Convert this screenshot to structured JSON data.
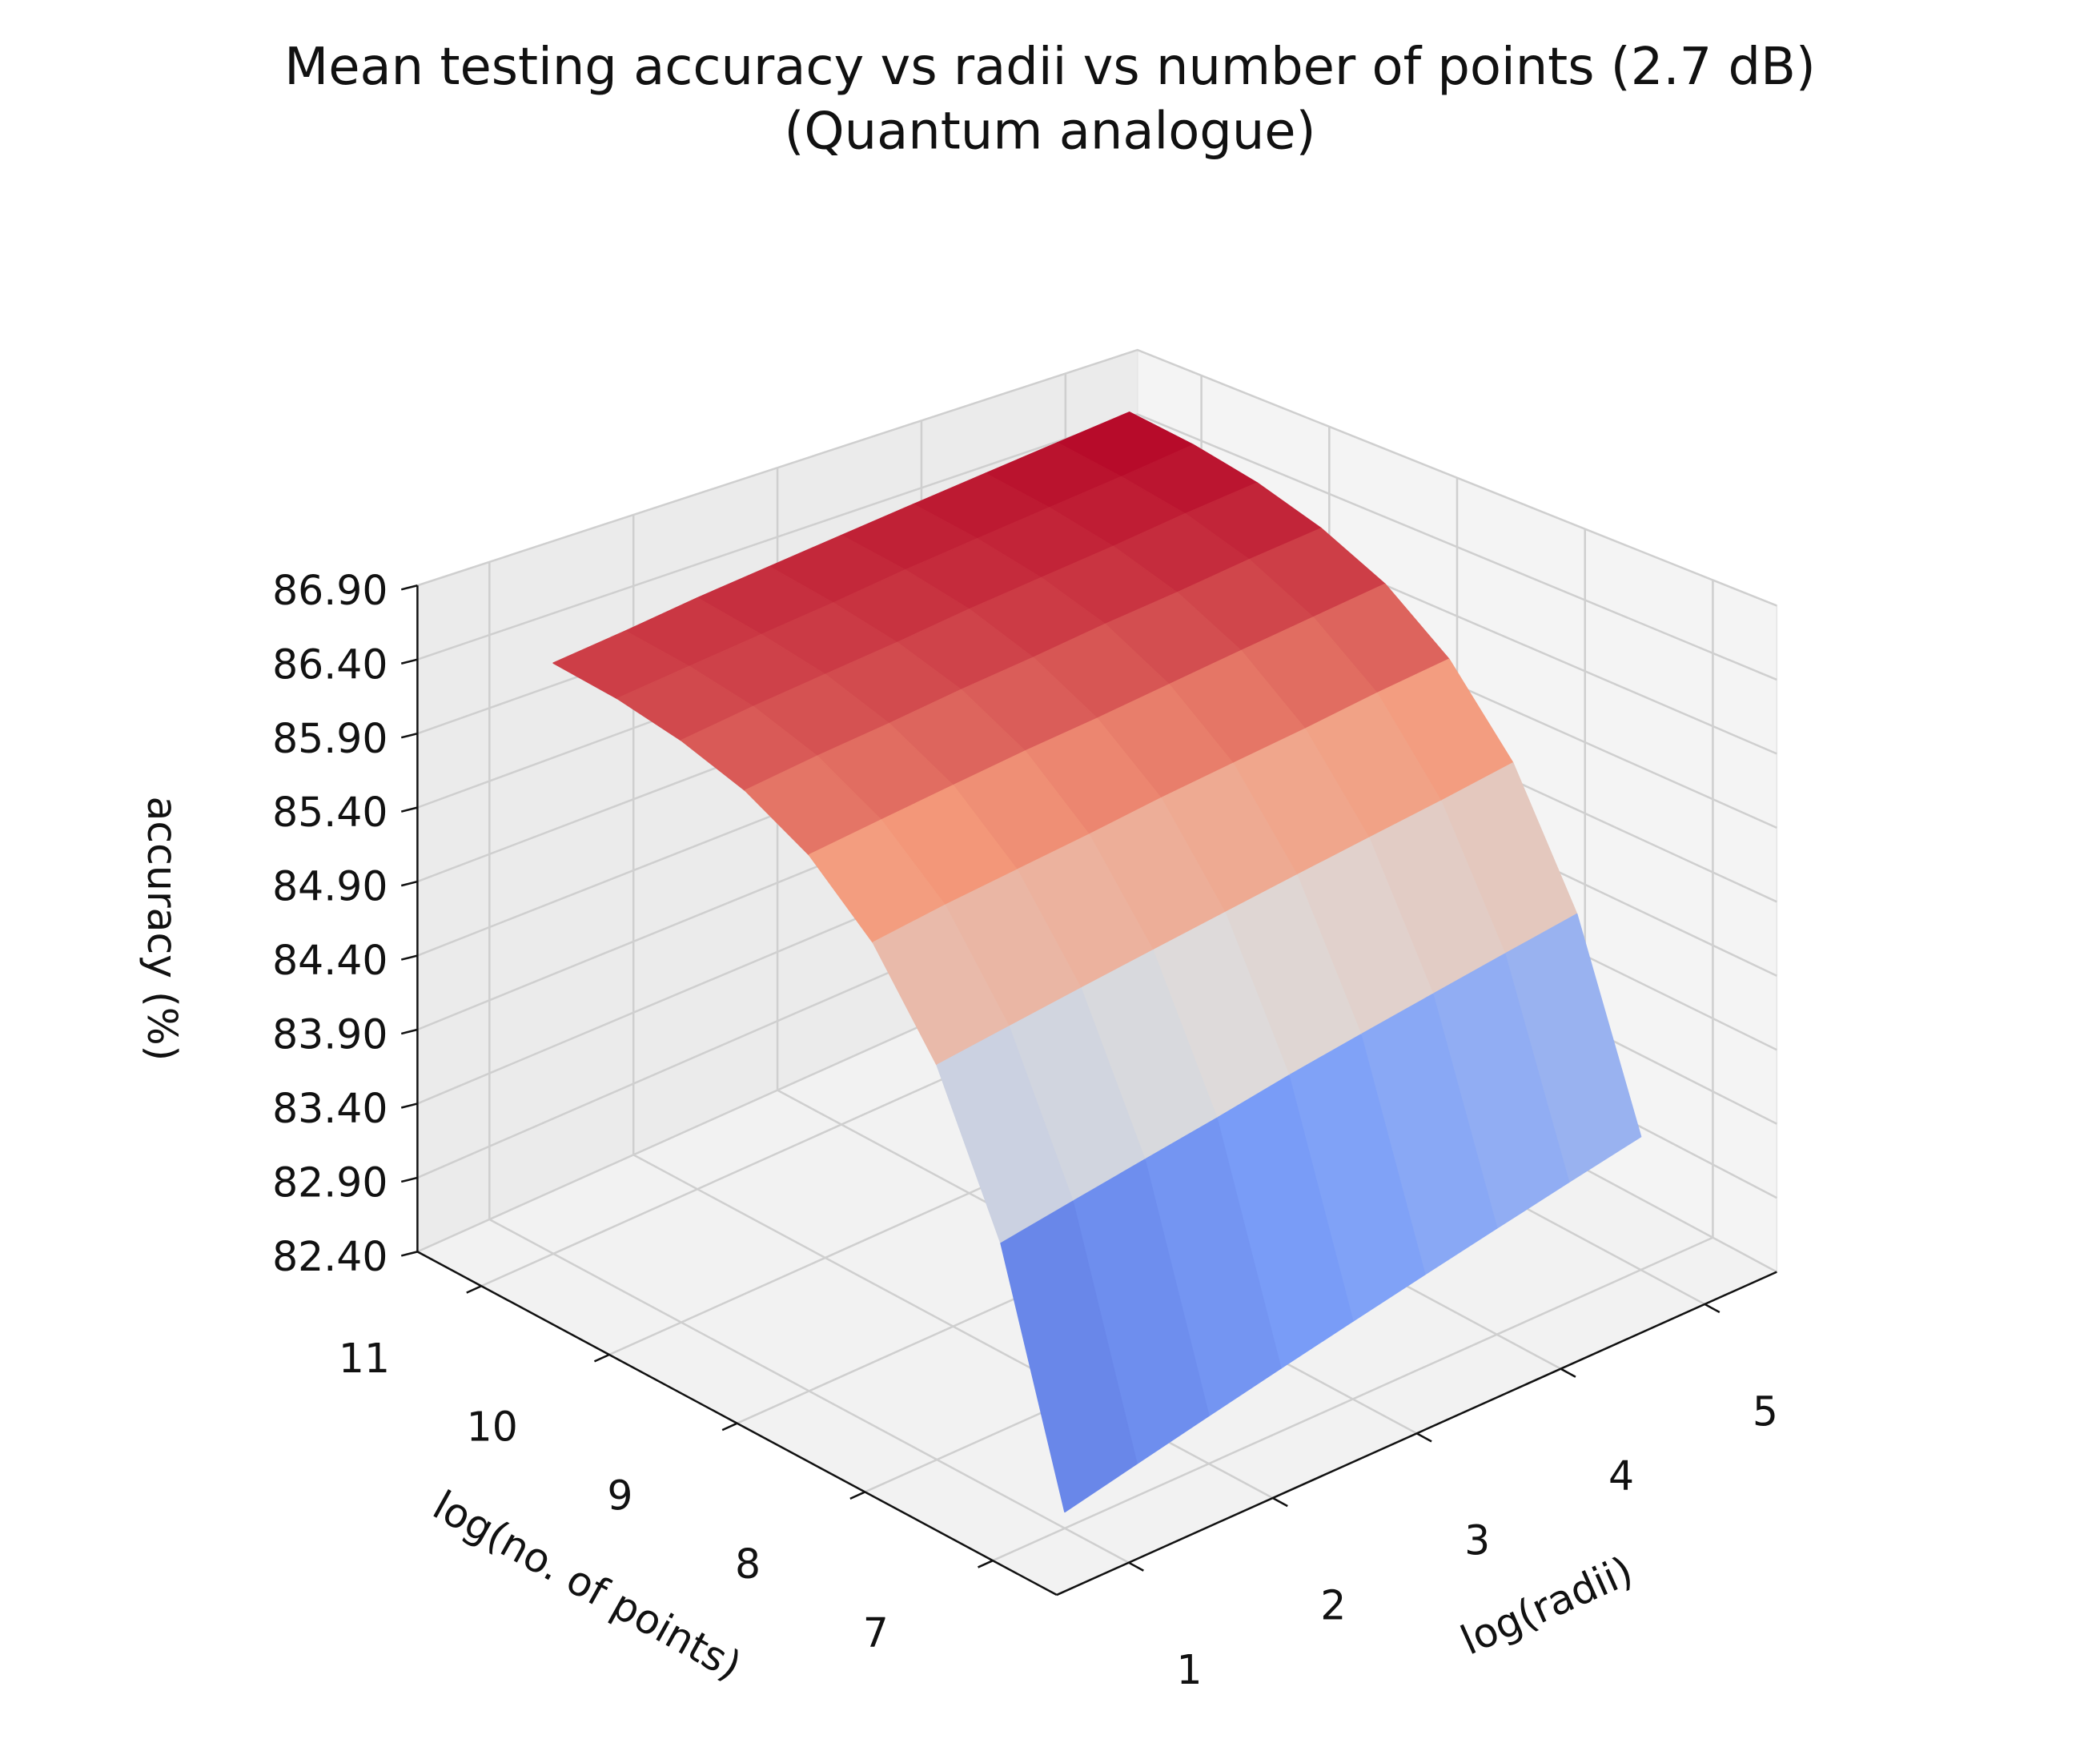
{
  "chart_data": {
    "type": "surface",
    "title": "Mean testing accuracy vs radii vs number of points (2.7 dB)",
    "subtitle": "(Quantum analogue)",
    "x_label": "log(radii)",
    "y_label": "log(no. of points)",
    "z_label": "accuracy (%)",
    "x": [
      1,
      1.5,
      2,
      2.5,
      3,
      3.5,
      4,
      4.5,
      5
    ],
    "y": [
      7,
      7.5,
      8,
      8.5,
      9,
      9.5,
      10,
      10.5,
      11
    ],
    "z": [
      [
        82.5,
        82.6,
        82.7,
        82.8,
        82.9,
        83.0,
        83.1,
        83.2,
        83.3
      ],
      [
        83.95,
        84.03,
        84.11,
        84.19,
        84.28,
        84.36,
        84.44,
        84.52,
        84.6
      ],
      [
        84.87,
        84.94,
        85.01,
        85.08,
        85.15,
        85.22,
        85.29,
        85.36,
        85.44
      ],
      [
        85.46,
        85.53,
        85.59,
        85.65,
        85.72,
        85.78,
        85.84,
        85.91,
        85.97
      ],
      [
        85.84,
        85.9,
        85.96,
        86.02,
        86.07,
        86.13,
        86.19,
        86.25,
        86.31
      ],
      [
        86.08,
        86.14,
        86.19,
        86.25,
        86.3,
        86.36,
        86.41,
        86.47,
        86.52
      ],
      [
        86.23,
        86.29,
        86.34,
        86.39,
        86.45,
        86.5,
        86.55,
        86.61,
        86.66
      ],
      [
        86.33,
        86.38,
        86.43,
        86.48,
        86.54,
        86.59,
        86.64,
        86.69,
        86.75
      ],
      [
        86.39,
        86.44,
        86.5,
        86.55,
        86.6,
        86.65,
        86.7,
        86.75,
        86.8
      ]
    ],
    "xlim": [
      0.5,
      5.5
    ],
    "ylim": [
      6.5,
      11.5
    ],
    "zlim": [
      82.4,
      86.9
    ],
    "xticks": [
      1,
      2,
      3,
      4,
      5
    ],
    "yticks": [
      7,
      8,
      9,
      10,
      11
    ],
    "zticks": [
      {
        "value": 82.4,
        "label": "82.40"
      },
      {
        "value": 82.9,
        "label": "82.90"
      },
      {
        "value": 83.4,
        "label": "83.40"
      },
      {
        "value": 83.9,
        "label": "83.90"
      },
      {
        "value": 84.4,
        "label": "84.40"
      },
      {
        "value": 84.9,
        "label": "84.90"
      },
      {
        "value": 85.4,
        "label": "85.40"
      },
      {
        "value": 85.9,
        "label": "85.90"
      },
      {
        "value": 86.4,
        "label": "86.40"
      },
      {
        "value": 86.9,
        "label": "86.90"
      }
    ],
    "colormap": [
      "#3b4cc0",
      "#7b9ff9",
      "#dddcdc",
      "#f49a7b",
      "#b40426"
    ],
    "grid": true
  }
}
